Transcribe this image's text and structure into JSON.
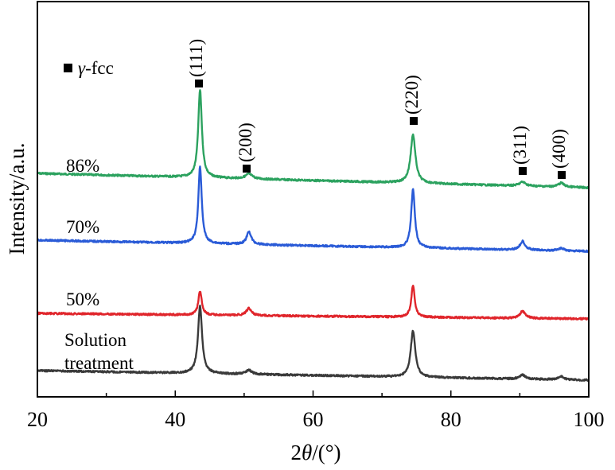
{
  "chart_data": {
    "type": "line",
    "title": "",
    "xlabel": "2θ/(°)",
    "xlabel_parts": {
      "num": "2",
      "theta": "θ",
      "unit": "/(°)"
    },
    "ylabel": "Intensity/a.u.",
    "xlim": [
      20,
      100
    ],
    "x_major_ticks": [
      20,
      40,
      60,
      80,
      100
    ],
    "x_minor_ticks": [
      30,
      50,
      70,
      90
    ],
    "grid": false,
    "legend": {
      "marker": "square",
      "text": "γ-fcc",
      "symbol": "γ",
      "suffix": "-fcc"
    },
    "peak_labels": [
      {
        "label": "(111)",
        "x": 43.6
      },
      {
        "label": "(200)",
        "x": 50.7
      },
      {
        "label": "(220)",
        "x": 74.5
      },
      {
        "label": "(311)",
        "x": 90.4
      },
      {
        "label": "(400)",
        "x": 96.0
      }
    ],
    "series": [
      {
        "name": "86%",
        "label_lines": [
          "86%"
        ],
        "color": "#2ca25f",
        "baseline_start": 218,
        "baseline_end": 236,
        "peaks": [
          {
            "x": 43.6,
            "height": 110,
            "width": 0.32
          },
          {
            "x": 50.7,
            "height": 6,
            "width": 0.6
          },
          {
            "x": 74.5,
            "height": 61,
            "width": 0.42
          },
          {
            "x": 90.4,
            "height": 5,
            "width": 0.55
          },
          {
            "x": 96.0,
            "height": 5,
            "width": 0.5
          }
        ]
      },
      {
        "name": "70%",
        "label_lines": [
          "70%"
        ],
        "color": "#2a5bd7",
        "baseline_start": 302,
        "baseline_end": 316,
        "peaks": [
          {
            "x": 43.6,
            "height": 96,
            "width": 0.3
          },
          {
            "x": 50.7,
            "height": 16,
            "width": 0.4
          },
          {
            "x": 74.5,
            "height": 73,
            "width": 0.32
          },
          {
            "x": 90.4,
            "height": 11,
            "width": 0.45
          },
          {
            "x": 96.0,
            "height": 3,
            "width": 0.5
          }
        ]
      },
      {
        "name": "50%",
        "label_lines": [
          "50%"
        ],
        "color": "#e0252b",
        "baseline_start": 394,
        "baseline_end": 401,
        "peaks": [
          {
            "x": 43.6,
            "height": 30,
            "width": 0.3
          },
          {
            "x": 50.7,
            "height": 9,
            "width": 0.45
          },
          {
            "x": 74.5,
            "height": 40,
            "width": 0.3
          },
          {
            "x": 90.4,
            "height": 9,
            "width": 0.45
          }
        ]
      },
      {
        "name": "Solution treatment",
        "label_lines": [
          "Solution",
          "treatment"
        ],
        "color": "#3a3a3a",
        "baseline_start": 466,
        "baseline_end": 478,
        "peaks": [
          {
            "x": 43.6,
            "height": 85,
            "width": 0.35
          },
          {
            "x": 50.7,
            "height": 5,
            "width": 0.5
          },
          {
            "x": 74.5,
            "height": 58,
            "width": 0.4
          },
          {
            "x": 90.4,
            "height": 5,
            "width": 0.5
          },
          {
            "x": 96.0,
            "height": 4,
            "width": 0.5
          }
        ]
      }
    ]
  }
}
